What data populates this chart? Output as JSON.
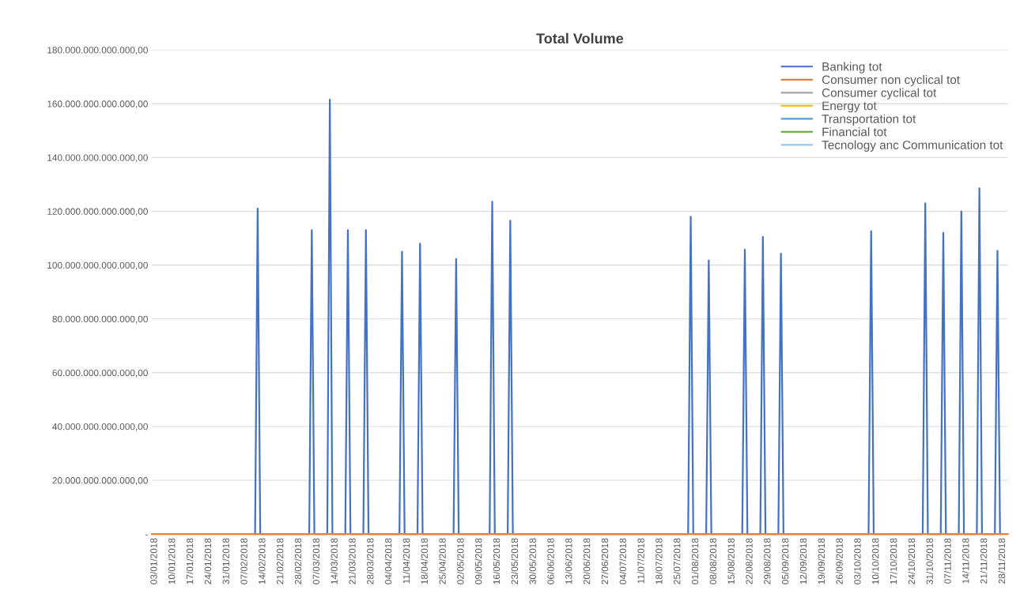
{
  "chart_data": {
    "type": "line",
    "title": "Total Volume",
    "xlim": [
      "2018-01-02",
      "2018-11-30"
    ],
    "xticks": [
      {
        "value": "2018-01-03",
        "label": "03/01/2018"
      },
      {
        "value": "2018-01-10",
        "label": "10/01/2018"
      },
      {
        "value": "2018-01-17",
        "label": "17/01/2018"
      },
      {
        "value": "2018-01-24",
        "label": "24/01/2018"
      },
      {
        "value": "2018-01-31",
        "label": "31/01/2018"
      },
      {
        "value": "2018-02-07",
        "label": "07/02/2018"
      },
      {
        "value": "2018-02-14",
        "label": "14/02/2018"
      },
      {
        "value": "2018-02-21",
        "label": "21/02/2018"
      },
      {
        "value": "2018-02-28",
        "label": "28/02/2018"
      },
      {
        "value": "2018-03-07",
        "label": "07/03/2018"
      },
      {
        "value": "2018-03-14",
        "label": "14/03/2018"
      },
      {
        "value": "2018-03-21",
        "label": "21/03/2018"
      },
      {
        "value": "2018-03-28",
        "label": "28/03/2018"
      },
      {
        "value": "2018-04-04",
        "label": "04/04/2018"
      },
      {
        "value": "2018-04-11",
        "label": "11/04/2018"
      },
      {
        "value": "2018-04-18",
        "label": "18/04/2018"
      },
      {
        "value": "2018-04-25",
        "label": "25/04/2018"
      },
      {
        "value": "2018-05-02",
        "label": "02/05/2018"
      },
      {
        "value": "2018-05-09",
        "label": "09/05/2018"
      },
      {
        "value": "2018-05-16",
        "label": "16/05/2018"
      },
      {
        "value": "2018-05-23",
        "label": "23/05/2018"
      },
      {
        "value": "2018-05-30",
        "label": "30/05/2018"
      },
      {
        "value": "2018-06-06",
        "label": "06/06/2018"
      },
      {
        "value": "2018-06-13",
        "label": "13/06/2018"
      },
      {
        "value": "2018-06-20",
        "label": "20/06/2018"
      },
      {
        "value": "2018-06-27",
        "label": "27/06/2018"
      },
      {
        "value": "2018-07-04",
        "label": "04/07/2018"
      },
      {
        "value": "2018-07-11",
        "label": "11/07/2018"
      },
      {
        "value": "2018-07-18",
        "label": "18/07/2018"
      },
      {
        "value": "2018-07-25",
        "label": "25/07/2018"
      },
      {
        "value": "2018-08-01",
        "label": "01/08/2018"
      },
      {
        "value": "2018-08-08",
        "label": "08/08/2018"
      },
      {
        "value": "2018-08-15",
        "label": "15/08/2018"
      },
      {
        "value": "2018-08-22",
        "label": "22/08/2018"
      },
      {
        "value": "2018-08-29",
        "label": "29/08/2018"
      },
      {
        "value": "2018-09-05",
        "label": "05/09/2018"
      },
      {
        "value": "2018-09-12",
        "label": "12/09/2018"
      },
      {
        "value": "2018-09-19",
        "label": "19/09/2018"
      },
      {
        "value": "2018-09-26",
        "label": "26/09/2018"
      },
      {
        "value": "2018-10-03",
        "label": "03/10/2018"
      },
      {
        "value": "2018-10-10",
        "label": "10/10/2018"
      },
      {
        "value": "2018-10-17",
        "label": "17/10/2018"
      },
      {
        "value": "2018-10-24",
        "label": "24/10/2018"
      },
      {
        "value": "2018-10-31",
        "label": "31/10/2018"
      },
      {
        "value": "2018-11-07",
        "label": "07/11/2018"
      },
      {
        "value": "2018-11-14",
        "label": "14/11/2018"
      },
      {
        "value": "2018-11-21",
        "label": "21/11/2018"
      },
      {
        "value": "2018-11-28",
        "label": "28/11/2018"
      }
    ],
    "ylim": [
      0,
      180000000000000
    ],
    "yticks": [
      {
        "value": 0,
        "label": "-"
      },
      {
        "value": 20000000000000,
        "label": "20.000.000.000.000,00"
      },
      {
        "value": 40000000000000,
        "label": "40.000.000.000.000,00"
      },
      {
        "value": 60000000000000,
        "label": "60.000.000.000.000,00"
      },
      {
        "value": 80000000000000,
        "label": "80.000.000.000.000,00"
      },
      {
        "value": 100000000000000,
        "label": "100.000.000.000.000,00"
      },
      {
        "value": 120000000000000,
        "label": "120.000.000.000.000,00"
      },
      {
        "value": 140000000000000,
        "label": "140.000.000.000.000,00"
      },
      {
        "value": 160000000000000,
        "label": "160.000.000.000.000,00"
      },
      {
        "value": 180000000000000,
        "label": "180.000.000.000.000,00"
      }
    ],
    "grid": "y",
    "legend": "top right",
    "marker": "none",
    "line_style": "solid",
    "series": [
      {
        "name": "Banking tot",
        "color": "#4472c4",
        "x": [
          "2018-02-11",
          "2018-02-12",
          "2018-02-13",
          "2018-03-04",
          "2018-03-05",
          "2018-03-06",
          "2018-03-11",
          "2018-03-12",
          "2018-03-13",
          "2018-03-18",
          "2018-03-19",
          "2018-03-20",
          "2018-03-25",
          "2018-03-26",
          "2018-03-27",
          "2018-04-08",
          "2018-04-09",
          "2018-04-10",
          "2018-04-15",
          "2018-04-16",
          "2018-04-17",
          "2018-04-29",
          "2018-04-30",
          "2018-05-01",
          "2018-05-13",
          "2018-05-14",
          "2018-05-15",
          "2018-05-20",
          "2018-05-21",
          "2018-05-22",
          "2018-07-29",
          "2018-07-30",
          "2018-07-31",
          "2018-08-05",
          "2018-08-06",
          "2018-08-07",
          "2018-08-19",
          "2018-08-20",
          "2018-08-21",
          "2018-08-26",
          "2018-08-27",
          "2018-08-28",
          "2018-09-02",
          "2018-09-03",
          "2018-09-04",
          "2018-10-07",
          "2018-10-08",
          "2018-10-09",
          "2018-10-28",
          "2018-10-29",
          "2018-10-30",
          "2018-11-04",
          "2018-11-05",
          "2018-11-06",
          "2018-11-11",
          "2018-11-12",
          "2018-11-13",
          "2018-11-18",
          "2018-11-19",
          "2018-11-20",
          "2018-11-25",
          "2018-11-26",
          "2018-11-27"
        ],
        "values": [
          0,
          121000000000000,
          0,
          0,
          113000000000000,
          0,
          0,
          161500000000000,
          0,
          0,
          113000000000000,
          0,
          0,
          113000000000000,
          0,
          0,
          105000000000000,
          0,
          0,
          108000000000000,
          0,
          0,
          102300000000000,
          0,
          0,
          123600000000000,
          0,
          0,
          116500000000000,
          0,
          0,
          118000000000000,
          0,
          0,
          101800000000000,
          0,
          0,
          105700000000000,
          0,
          0,
          110500000000000,
          0,
          0,
          104300000000000,
          0,
          0,
          112600000000000,
          0,
          0,
          123000000000000,
          0,
          0,
          112000000000000,
          0,
          0,
          120000000000000,
          0,
          0,
          128600000000000,
          0,
          0,
          105300000000000,
          0
        ]
      },
      {
        "name": "Consumer non cyclical tot",
        "color": "#ed7d31",
        "x": [
          "2018-01-02",
          "2018-11-30"
        ],
        "values": [
          0,
          0
        ]
      },
      {
        "name": "Consumer cyclical tot",
        "color": "#a5a5a5"
      },
      {
        "name": "Energy tot",
        "color": "#ffc000"
      },
      {
        "name": "Transportation tot",
        "color": "#5b9bd5"
      },
      {
        "name": "Financial tot",
        "color": "#70ad47"
      },
      {
        "name": "Tecnology anc Communication tot",
        "color": "#9dc3e6"
      }
    ]
  }
}
